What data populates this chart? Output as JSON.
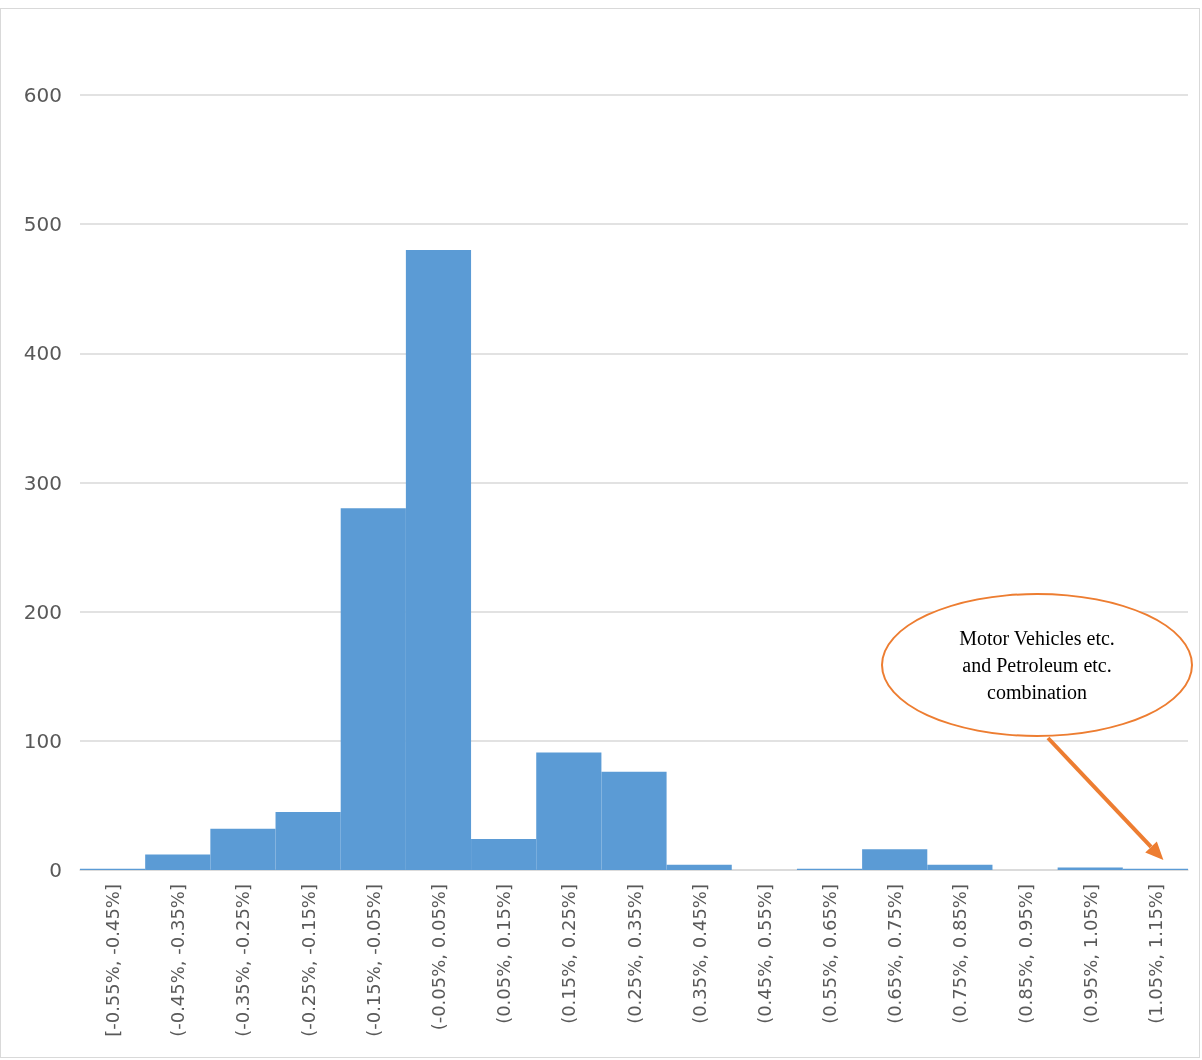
{
  "chart_data": {
    "type": "bar",
    "categories": [
      "[-0.55%, -0.45%]",
      "(-0.45%, -0.35%]",
      "(-0.35%, -0.25%]",
      "(-0.25%, -0.15%]",
      "(-0.15%, -0.05%]",
      "(-0.05%, 0.05%]",
      "(0.05%, 0.15%]",
      "(0.15%, 0.25%]",
      "(0.25%, 0.35%]",
      "(0.35%, 0.45%]",
      "(0.45%, 0.55%]",
      "(0.55%, 0.65%]",
      "(0.65%, 0.75%]",
      "(0.75%, 0.85%]",
      "(0.85%, 0.95%]",
      "(0.95%, 1.05%]",
      "(1.05%, 1.15%]"
    ],
    "values": [
      1,
      12,
      32,
      45,
      280,
      480,
      24,
      91,
      76,
      4,
      0,
      1,
      16,
      4,
      0,
      2,
      1
    ],
    "color": "#5b9bd5",
    "ylim": [
      0,
      600
    ],
    "yticks": [
      0,
      100,
      200,
      300,
      400,
      500,
      600
    ],
    "grid": "y",
    "annotations": [
      "Motor Vehicles etc. and Petroleum etc. combination"
    ]
  }
}
